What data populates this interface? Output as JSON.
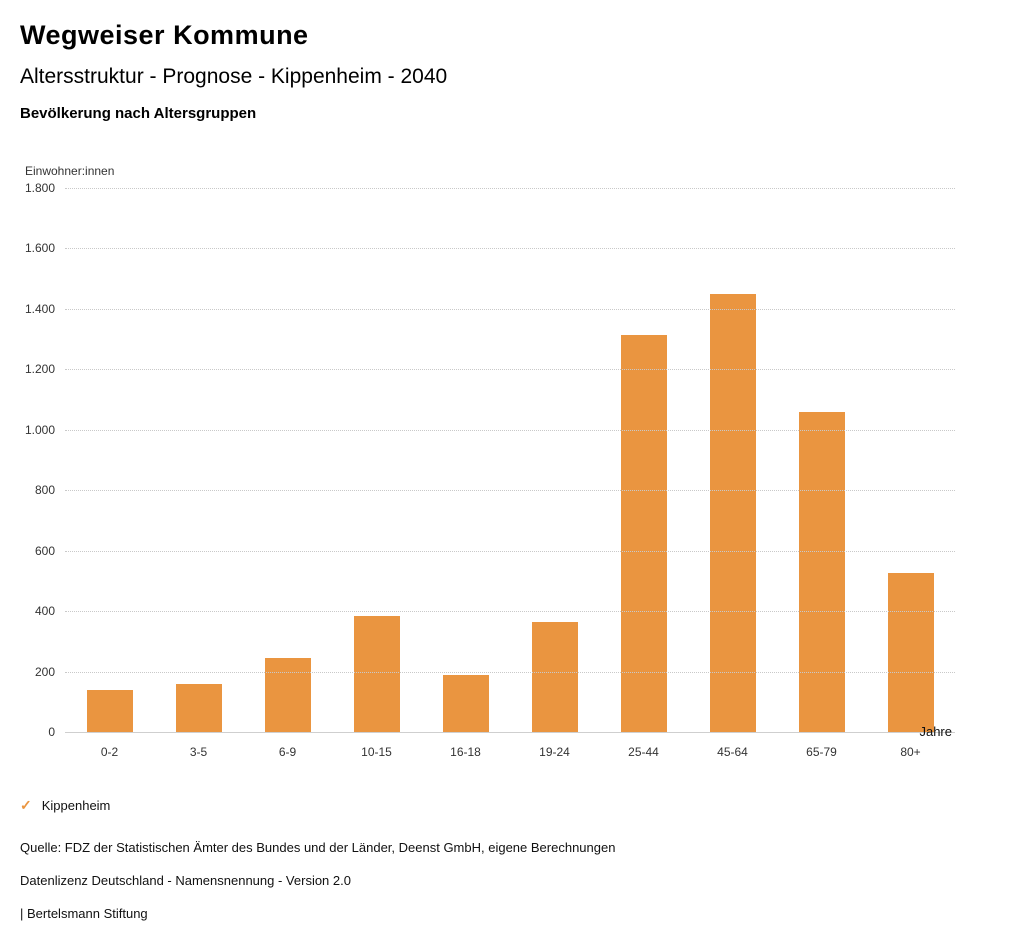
{
  "header": {
    "brand": "Wegweiser Kommune",
    "title": "Altersstruktur - Prognose - Kippenheim - 2040",
    "subtitle": "Bevölkerung nach Altersgruppen"
  },
  "chart_data": {
    "type": "bar",
    "title": "Bevölkerung nach Altersgruppen",
    "ylabel": "Einwohner:innen",
    "xlabel": "Jahre",
    "categories": [
      "0-2",
      "3-5",
      "6-9",
      "10-15",
      "16-18",
      "19-24",
      "25-44",
      "45-64",
      "65-79",
      "80+"
    ],
    "series": [
      {
        "name": "Kippenheim",
        "values": [
          140,
          160,
          245,
          385,
          190,
          365,
          1315,
          1450,
          1060,
          525
        ]
      }
    ],
    "ylim": [
      0,
      1800
    ],
    "ytick_step": 200,
    "ytick_labels": [
      "0",
      "200",
      "400",
      "600",
      "800",
      "1.000",
      "1.200",
      "1.400",
      "1.600",
      "1.800"
    ],
    "grid": true,
    "bar_color": "#EA9540",
    "legend_position": "bottom"
  },
  "legend": {
    "items": [
      {
        "label": "Kippenheim",
        "marker": "✓",
        "color": "#EA9540"
      }
    ]
  },
  "footer": {
    "source": "Quelle: FDZ der Statistischen Ämter des Bundes und der Länder, Deenst GmbH, eigene Berechnungen",
    "license": "Datenlizenz Deutschland - Namensnennung - Version 2.0",
    "attribution": "| Bertelsmann Stiftung"
  }
}
